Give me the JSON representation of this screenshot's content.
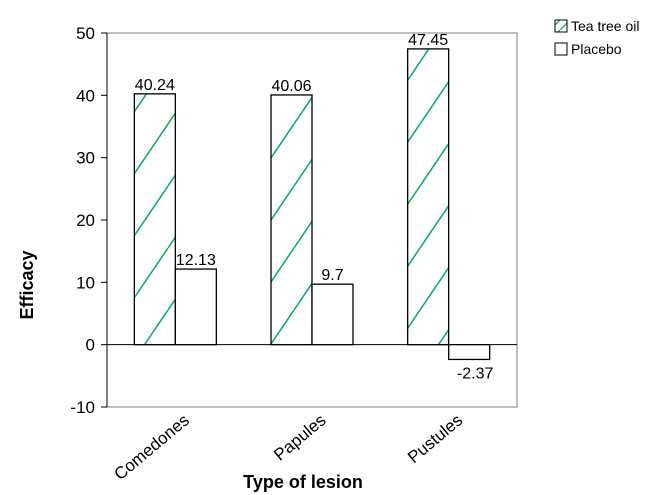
{
  "chart_data": {
    "type": "bar",
    "categories": [
      "Comedones",
      "Papules",
      "Pustules"
    ],
    "series": [
      {
        "name": "Tea tree oil",
        "values": [
          40.24,
          40.06,
          47.45
        ],
        "color": "#1aa860",
        "pattern": "diagonal-hatch",
        "labels": [
          "40.24",
          "40.06",
          "47.45"
        ]
      },
      {
        "name": "Placebo",
        "values": [
          12.13,
          9.7,
          -2.37
        ],
        "color": "#ffffff",
        "pattern": "none",
        "labels": [
          "12.13",
          "9.7",
          "-2.37"
        ]
      }
    ],
    "title": "",
    "xlabel": "Type of lesion",
    "ylabel": "Efficacy",
    "ylim": [
      -10,
      50
    ],
    "yticks": [
      -10,
      0,
      10,
      20,
      30,
      40,
      50
    ],
    "grid": false,
    "legend": "top-right"
  }
}
